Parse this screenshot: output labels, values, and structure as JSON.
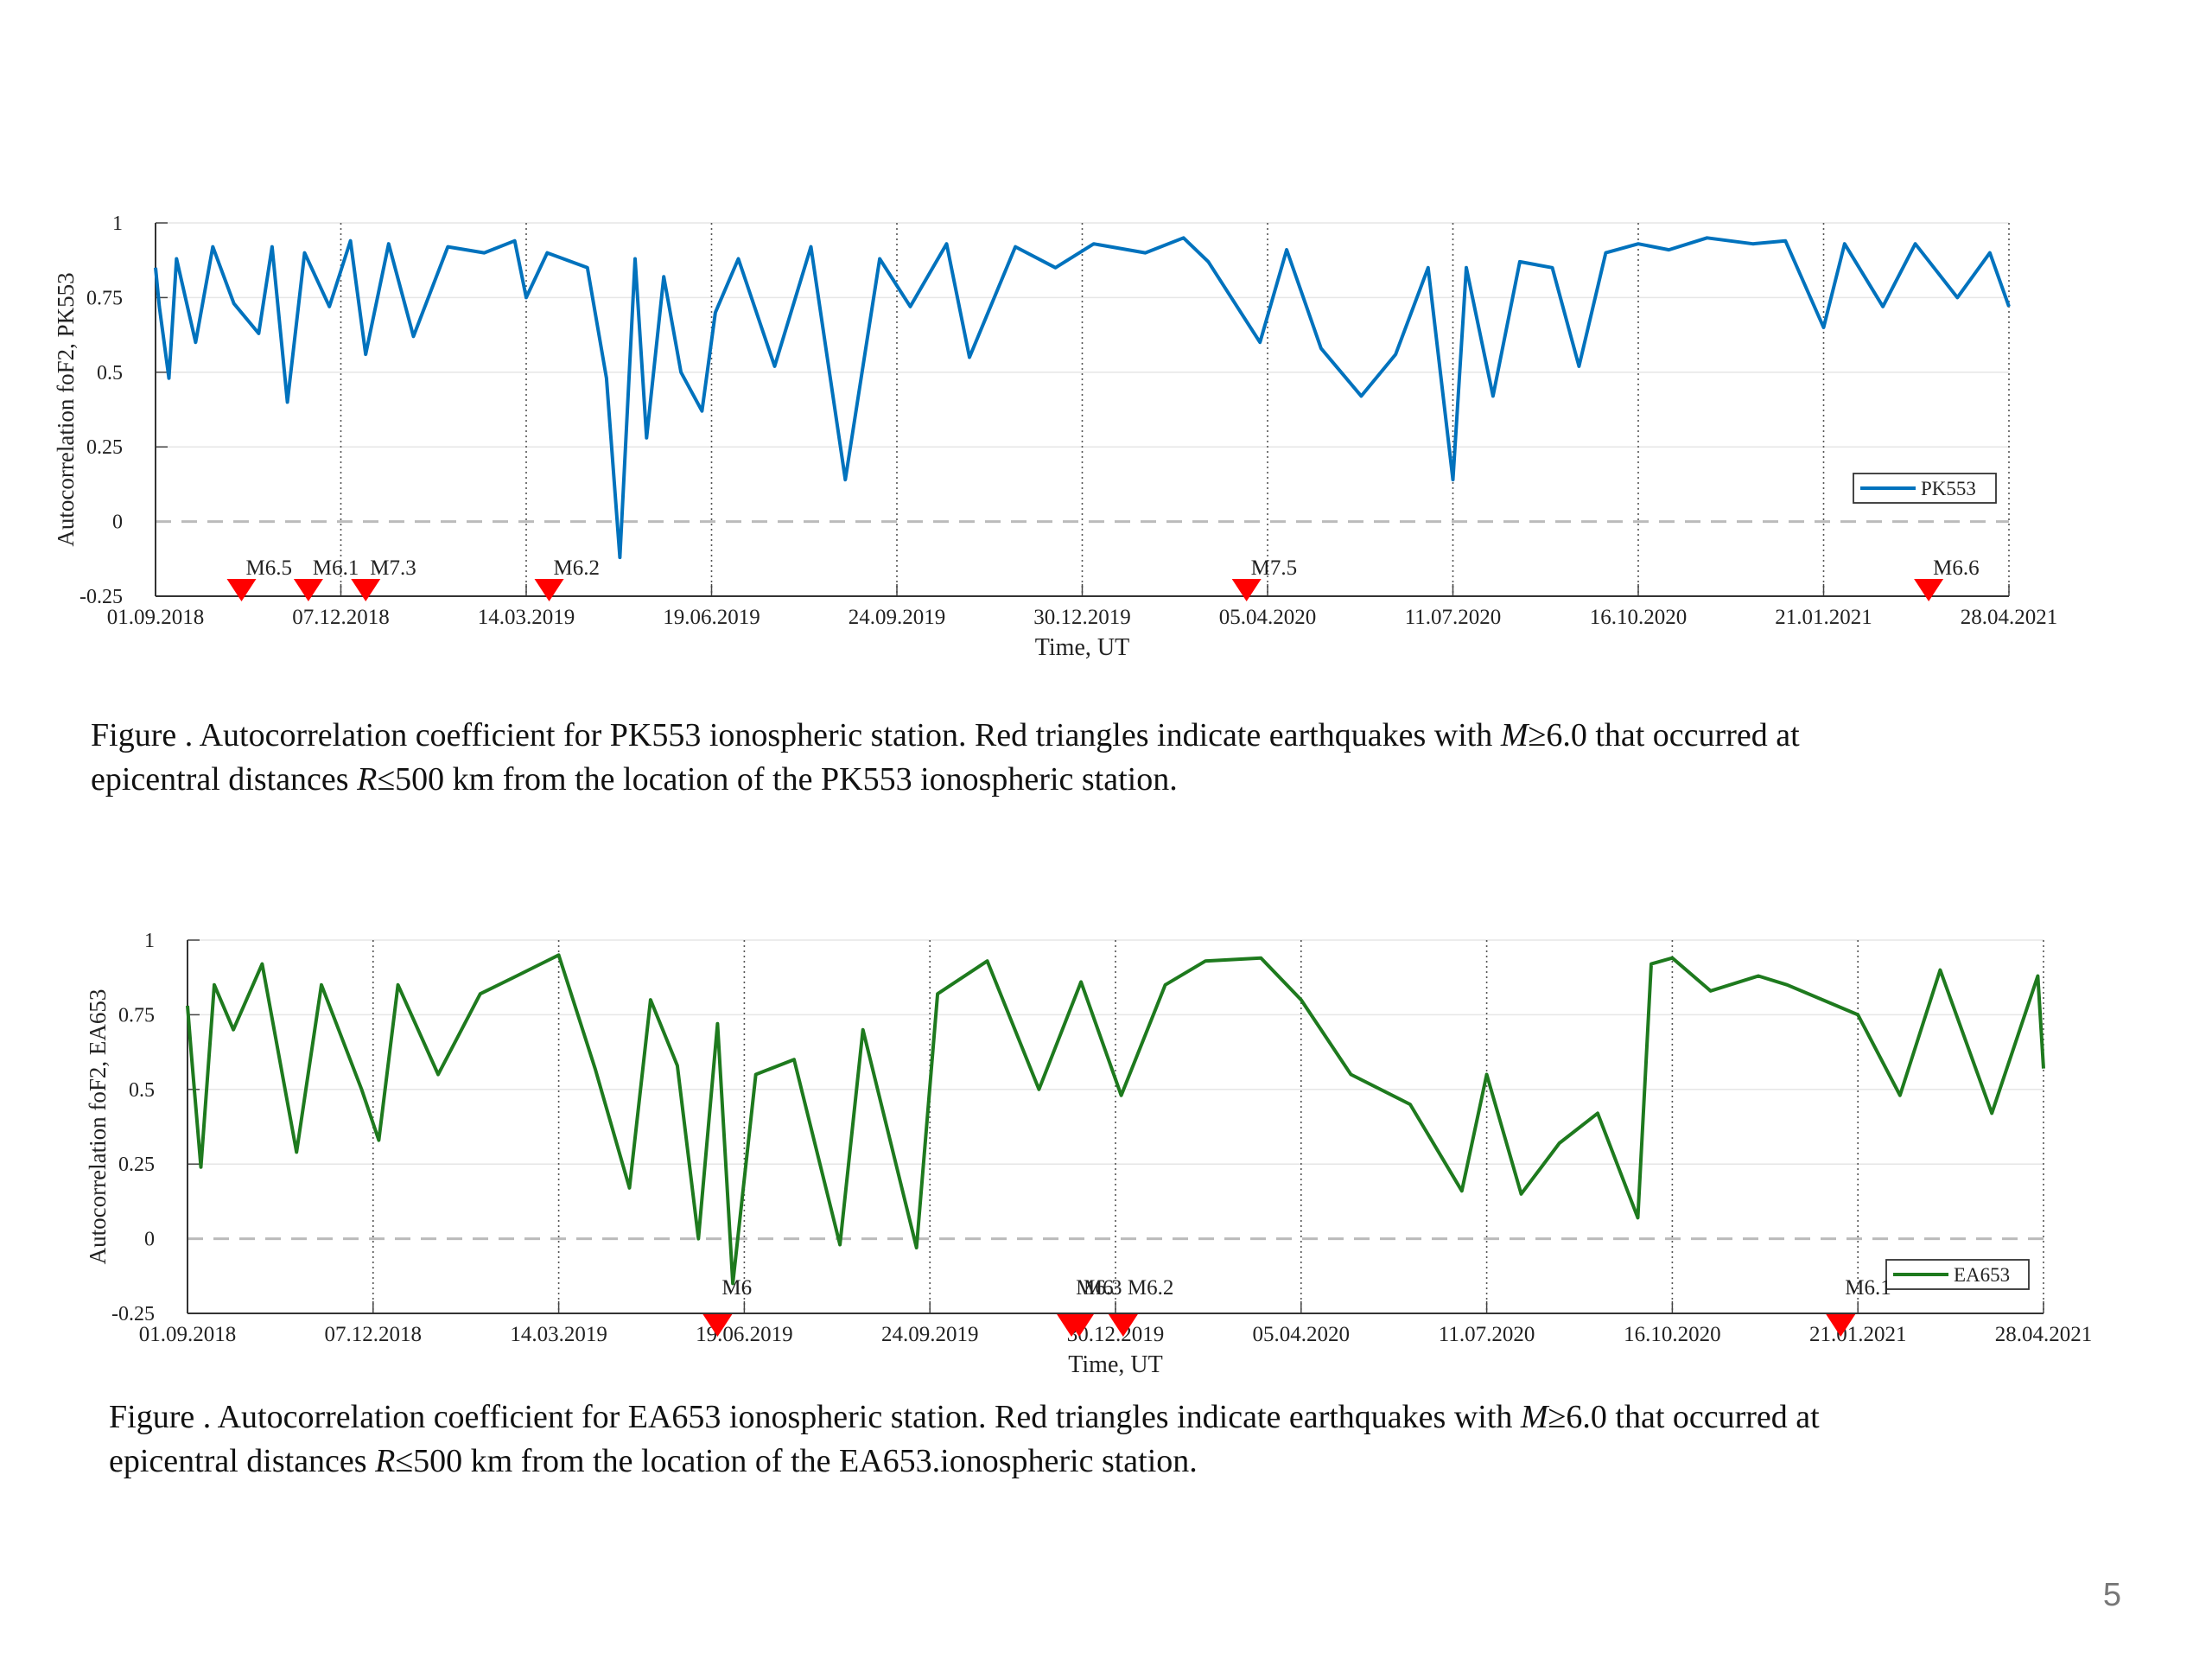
{
  "slide": {
    "page_number": "5"
  },
  "captions": [
    {
      "prefix": "Figure . Autocorrelation coefficient for PK553 ionospheric station. Red triangles indicate earthquakes with ",
      "m": "M",
      "m_cond": "≥6.0 that occurred at",
      "line2_prefix": "epicentral distances ",
      "r": "R",
      "r_cond": "≤500 km from the location of the PK553 ionospheric station."
    },
    {
      "prefix": "Figure . Autocorrelation coefficient for EA653 ionospheric station. Red triangles indicate earthquakes with ",
      "m": "M",
      "m_cond": "≥6.0 that occurred at",
      "line2_prefix": "epicentral distances ",
      "r": "R",
      "r_cond": "≤500 km from the location of the EA653.ionospheric station."
    }
  ],
  "chart_data": [
    {
      "type": "line",
      "ylabel": "Autocorrelation foF2, PK553",
      "xlabel": "Time, UT",
      "ylim": [
        -0.25,
        1
      ],
      "yticks": [
        1,
        0.75,
        0.5,
        0.25,
        0,
        -0.25
      ],
      "ytick_labels": [
        "1",
        "0.75",
        "0.5",
        "0.25",
        "0",
        "-0.25"
      ],
      "xlim": [
        "01.09.2018",
        "28.04.2021"
      ],
      "xtick_labels": [
        "01.09.2018",
        "07.12.2018",
        "14.03.2019",
        "19.06.2019",
        "24.09.2019",
        "30.12.2019",
        "05.04.2020",
        "11.07.2020",
        "16.10.2020",
        "21.01.2021",
        "28.04.2021"
      ],
      "grid": true,
      "zero_line": 0,
      "legend_position": "lower-right",
      "color": "#0072BD",
      "series": [
        {
          "name": "PK553",
          "points": [
            [
              "01.09.2018",
              0.85
            ],
            [
              "03.09.2018",
              0.72
            ],
            [
              "08.09.2018",
              0.48
            ],
            [
              "12.09.2018",
              0.88
            ],
            [
              "22.09.2018",
              0.6
            ],
            [
              "01.10.2018",
              0.92
            ],
            [
              "12.10.2018",
              0.73
            ],
            [
              "25.10.2018",
              0.63
            ],
            [
              "01.11.2018",
              0.92
            ],
            [
              "09.11.2018",
              0.4
            ],
            [
              "18.11.2018",
              0.9
            ],
            [
              "01.12.2018",
              0.72
            ],
            [
              "12.12.2018",
              0.94
            ],
            [
              "20.12.2018",
              0.56
            ],
            [
              "01.01.2019",
              0.93
            ],
            [
              "14.01.2019",
              0.62
            ],
            [
              "01.02.2019",
              0.92
            ],
            [
              "20.02.2019",
              0.9
            ],
            [
              "08.03.2019",
              0.94
            ],
            [
              "14.03.2019",
              0.75
            ],
            [
              "25.03.2019",
              0.9
            ],
            [
              "15.04.2019",
              0.85
            ],
            [
              "25.04.2019",
              0.48
            ],
            [
              "02.05.2019",
              -0.12
            ],
            [
              "10.05.2019",
              0.88
            ],
            [
              "16.05.2019",
              0.28
            ],
            [
              "25.05.2019",
              0.82
            ],
            [
              "03.06.2019",
              0.5
            ],
            [
              "14.06.2019",
              0.37
            ],
            [
              "21.06.2019",
              0.7
            ],
            [
              "03.07.2019",
              0.88
            ],
            [
              "22.07.2019",
              0.52
            ],
            [
              "10.08.2019",
              0.92
            ],
            [
              "28.08.2019",
              0.14
            ],
            [
              "15.09.2019",
              0.88
            ],
            [
              "01.10.2019",
              0.72
            ],
            [
              "20.10.2019",
              0.93
            ],
            [
              "01.11.2019",
              0.55
            ],
            [
              "25.11.2019",
              0.92
            ],
            [
              "16.12.2019",
              0.85
            ],
            [
              "05.01.2020",
              0.93
            ],
            [
              "01.02.2020",
              0.9
            ],
            [
              "21.02.2020",
              0.95
            ],
            [
              "05.03.2020",
              0.87
            ],
            [
              "01.04.2020",
              0.6
            ],
            [
              "15.04.2020",
              0.91
            ],
            [
              "03.05.2020",
              0.58
            ],
            [
              "24.05.2020",
              0.42
            ],
            [
              "11.06.2020",
              0.56
            ],
            [
              "28.06.2020",
              0.85
            ],
            [
              "11.07.2020",
              0.14
            ],
            [
              "18.07.2020",
              0.85
            ],
            [
              "01.08.2020",
              0.42
            ],
            [
              "15.08.2020",
              0.87
            ],
            [
              "01.09.2020",
              0.85
            ],
            [
              "15.09.2020",
              0.52
            ],
            [
              "29.09.2020",
              0.9
            ],
            [
              "16.10.2020",
              0.93
            ],
            [
              "01.11.2020",
              0.91
            ],
            [
              "21.11.2020",
              0.95
            ],
            [
              "15.12.2020",
              0.93
            ],
            [
              "01.01.2021",
              0.94
            ],
            [
              "21.01.2021",
              0.65
            ],
            [
              "01.02.2021",
              0.93
            ],
            [
              "21.02.2021",
              0.72
            ],
            [
              "10.03.2021",
              0.93
            ],
            [
              "01.04.2021",
              0.75
            ],
            [
              "18.04.2021",
              0.9
            ],
            [
              "28.04.2021",
              0.72
            ]
          ]
        }
      ],
      "earthquakes": [
        {
          "date": "16.10.2018",
          "label": "M6.5"
        },
        {
          "date": "20.11.2018",
          "label": "M6.1"
        },
        {
          "date": "20.12.2018",
          "label": "M7.3"
        },
        {
          "date": "26.03.2019",
          "label": "M6.2"
        },
        {
          "date": "25.03.2020",
          "label": "M7.5"
        },
        {
          "date": "17.03.2021",
          "label": "M6.6"
        }
      ]
    },
    {
      "type": "line",
      "ylabel": "Autocorrelation foF2, EA653",
      "xlabel": "Time, UT",
      "ylim": [
        -0.25,
        1
      ],
      "yticks": [
        1,
        0.75,
        0.5,
        0.25,
        0,
        -0.25
      ],
      "ytick_labels": [
        "1",
        "0.75",
        "0.5",
        "0.25",
        "0",
        "-0.25"
      ],
      "xlim": [
        "01.09.2018",
        "28.04.2021"
      ],
      "xtick_labels": [
        "01.09.2018",
        "07.12.2018",
        "14.03.2019",
        "19.06.2019",
        "24.09.2019",
        "30.12.2019",
        "05.04.2020",
        "11.07.2020",
        "16.10.2020",
        "21.01.2021",
        "28.04.2021"
      ],
      "grid": true,
      "zero_line": 0,
      "legend_position": "lower-right",
      "color": "#1E7A1E",
      "series": [
        {
          "name": "EA653",
          "points": [
            [
              "01.09.2018",
              0.78
            ],
            [
              "03.09.2018",
              0.62
            ],
            [
              "08.09.2018",
              0.24
            ],
            [
              "15.09.2018",
              0.85
            ],
            [
              "25.09.2018",
              0.7
            ],
            [
              "10.10.2018",
              0.92
            ],
            [
              "28.10.2018",
              0.29
            ],
            [
              "10.11.2018",
              0.85
            ],
            [
              "01.12.2018",
              0.5
            ],
            [
              "10.12.2018",
              0.33
            ],
            [
              "20.12.2018",
              0.85
            ],
            [
              "10.01.2019",
              0.55
            ],
            [
              "01.02.2019",
              0.82
            ],
            [
              "20.02.2019",
              0.88
            ],
            [
              "14.03.2019",
              0.95
            ],
            [
              "02.04.2019",
              0.57
            ],
            [
              "20.04.2019",
              0.17
            ],
            [
              "01.05.2019",
              0.8
            ],
            [
              "15.05.2019",
              0.58
            ],
            [
              "26.05.2019",
              0.0
            ],
            [
              "05.06.2019",
              0.72
            ],
            [
              "13.06.2019",
              -0.15
            ],
            [
              "25.06.2019",
              0.55
            ],
            [
              "15.07.2019",
              0.6
            ],
            [
              "08.08.2019",
              -0.02
            ],
            [
              "20.08.2019",
              0.7
            ],
            [
              "17.09.2019",
              -0.03
            ],
            [
              "28.09.2019",
              0.82
            ],
            [
              "24.10.2019",
              0.93
            ],
            [
              "20.11.2019",
              0.5
            ],
            [
              "12.12.2019",
              0.86
            ],
            [
              "02.01.2020",
              0.48
            ],
            [
              "25.01.2020",
              0.85
            ],
            [
              "15.02.2020",
              0.93
            ],
            [
              "15.03.2020",
              0.94
            ],
            [
              "05.04.2020",
              0.8
            ],
            [
              "01.05.2020",
              0.55
            ],
            [
              "01.06.2020",
              0.45
            ],
            [
              "28.06.2020",
              0.16
            ],
            [
              "11.07.2020",
              0.55
            ],
            [
              "29.07.2020",
              0.15
            ],
            [
              "18.08.2020",
              0.32
            ],
            [
              "07.09.2020",
              0.42
            ],
            [
              "28.09.2020",
              0.07
            ],
            [
              "05.10.2020",
              0.92
            ],
            [
              "16.10.2020",
              0.94
            ],
            [
              "05.11.2020",
              0.83
            ],
            [
              "30.11.2020",
              0.88
            ],
            [
              "15.12.2020",
              0.85
            ],
            [
              "21.01.2021",
              0.75
            ],
            [
              "12.02.2021",
              0.48
            ],
            [
              "05.03.2021",
              0.9
            ],
            [
              "01.04.2021",
              0.42
            ],
            [
              "25.04.2021",
              0.88
            ],
            [
              "28.04.2021",
              0.57
            ]
          ]
        }
      ],
      "earthquakes": [
        {
          "date": "05.06.2019",
          "label": "M6"
        },
        {
          "date": "07.12.2019",
          "label": "M6.3"
        },
        {
          "date": "11.12.2019",
          "label": "M6"
        },
        {
          "date": "03.01.2020",
          "label": "M6.2"
        },
        {
          "date": "12.01.2021",
          "label": "M6.1"
        }
      ]
    }
  ]
}
